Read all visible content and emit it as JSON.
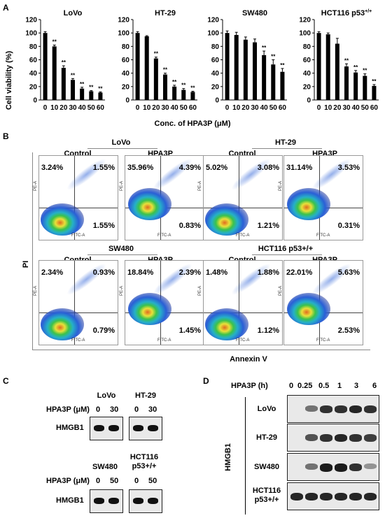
{
  "panel_a": {
    "letter": "A",
    "ylabel": "Cell viability (%)",
    "xlabel": "Conc. of HPA3P (μM)",
    "sig": "**"
  },
  "chart_data": [
    {
      "type": "bar",
      "title": "LoVo",
      "categories": [
        "0",
        "10",
        "20",
        "30",
        "40",
        "50",
        "60"
      ],
      "values": [
        100,
        80,
        48,
        30,
        17,
        13,
        11
      ],
      "errors": [
        2,
        2,
        3,
        2,
        2,
        1,
        1
      ],
      "significant": [
        false,
        true,
        true,
        true,
        true,
        true,
        true
      ],
      "ylabel": "Cell viability (%)",
      "xlabel": "Conc. of HPA3P (μM)",
      "ylim": [
        0,
        120
      ],
      "yticks": [
        0,
        20,
        40,
        60,
        80,
        100,
        120
      ]
    },
    {
      "type": "bar",
      "title": "HT-29",
      "categories": [
        "0",
        "10",
        "20",
        "30",
        "40",
        "50",
        "60"
      ],
      "values": [
        100,
        95,
        62,
        38,
        20,
        15,
        12
      ],
      "errors": [
        2,
        1,
        2,
        2,
        2,
        2,
        1
      ],
      "significant": [
        false,
        false,
        true,
        true,
        true,
        true,
        true
      ],
      "ylim": [
        0,
        120
      ],
      "yticks": [
        0,
        20,
        40,
        60,
        80,
        100,
        120
      ]
    },
    {
      "type": "bar",
      "title": "SW480",
      "categories": [
        "0",
        "10",
        "20",
        "30",
        "40",
        "50",
        "60"
      ],
      "values": [
        100,
        97,
        90,
        86,
        67,
        53,
        42
      ],
      "errors": [
        3,
        4,
        4,
        5,
        6,
        7,
        5
      ],
      "significant": [
        false,
        false,
        false,
        false,
        true,
        true,
        true
      ],
      "ylim": [
        0,
        120
      ],
      "yticks": [
        0,
        20,
        40,
        60,
        80,
        100,
        120
      ]
    },
    {
      "type": "bar",
      "title": "HCT116 p53+/+",
      "categories": [
        "0",
        "10",
        "20",
        "30",
        "40",
        "50",
        "60"
      ],
      "values": [
        100,
        98,
        84,
        50,
        41,
        36,
        21
      ],
      "errors": [
        2,
        2,
        8,
        4,
        3,
        3,
        2
      ],
      "significant": [
        false,
        false,
        false,
        true,
        true,
        true,
        true
      ],
      "ylim": [
        0,
        120
      ],
      "yticks": [
        0,
        20,
        40,
        60,
        80,
        100,
        120
      ]
    }
  ],
  "panel_b": {
    "letter": "B",
    "ylabel": "PI",
    "xlabel": "Annexin V",
    "axis_y": "PE-A",
    "axis_x": "FITC-A",
    "groups": [
      {
        "cell": "LoVo",
        "left": "Control",
        "right": "HPA3P"
      },
      {
        "cell": "HT-29",
        "left": "Control",
        "right": "HPA3P"
      },
      {
        "cell": "SW480",
        "left": "Control",
        "right": "HPA3P"
      },
      {
        "cell": "HCT116 p53+/+",
        "left": "Control",
        "right": "HPA3P"
      }
    ],
    "plots": [
      {
        "ul": "3.24%",
        "ur": "1.55%",
        "lr": "1.55%"
      },
      {
        "ul": "35.96%",
        "ur": "4.39%",
        "lr": "0.83%"
      },
      {
        "ul": "5.02%",
        "ur": "3.08%",
        "lr": "1.21%"
      },
      {
        "ul": "31.14%",
        "ur": "3.53%",
        "lr": "0.31%"
      },
      {
        "ul": "2.34%",
        "ur": "0.93%",
        "lr": "0.79%"
      },
      {
        "ul": "18.84%",
        "ur": "2.39%",
        "lr": "1.45%"
      },
      {
        "ul": "1.48%",
        "ur": "1.88%",
        "lr": "1.12%"
      },
      {
        "ul": "22.01%",
        "ur": "5.63%",
        "lr": "2.53%"
      }
    ]
  },
  "panel_c": {
    "letter": "C",
    "top": {
      "cells": [
        "LoVo",
        "HT-29"
      ],
      "treat": "HPA3P (μM)",
      "doses": [
        "0",
        "30",
        "0",
        "30"
      ],
      "protein": "HMGB1"
    },
    "bottom": {
      "cells": [
        "SW480",
        "HCT116 p53+/+"
      ],
      "treat": "HPA3P (μM)",
      "doses": [
        "0",
        "50",
        "0",
        "50"
      ],
      "protein": "HMGB1"
    }
  },
  "panel_d": {
    "letter": "D",
    "treat": "HPA3P (h)",
    "times": [
      "0",
      "0.25",
      "0.5",
      "1",
      "3",
      "6"
    ],
    "protein": "HMGB1",
    "rows": [
      "LoVo",
      "HT-29",
      "SW480",
      "HCT116 p53+/+"
    ]
  }
}
